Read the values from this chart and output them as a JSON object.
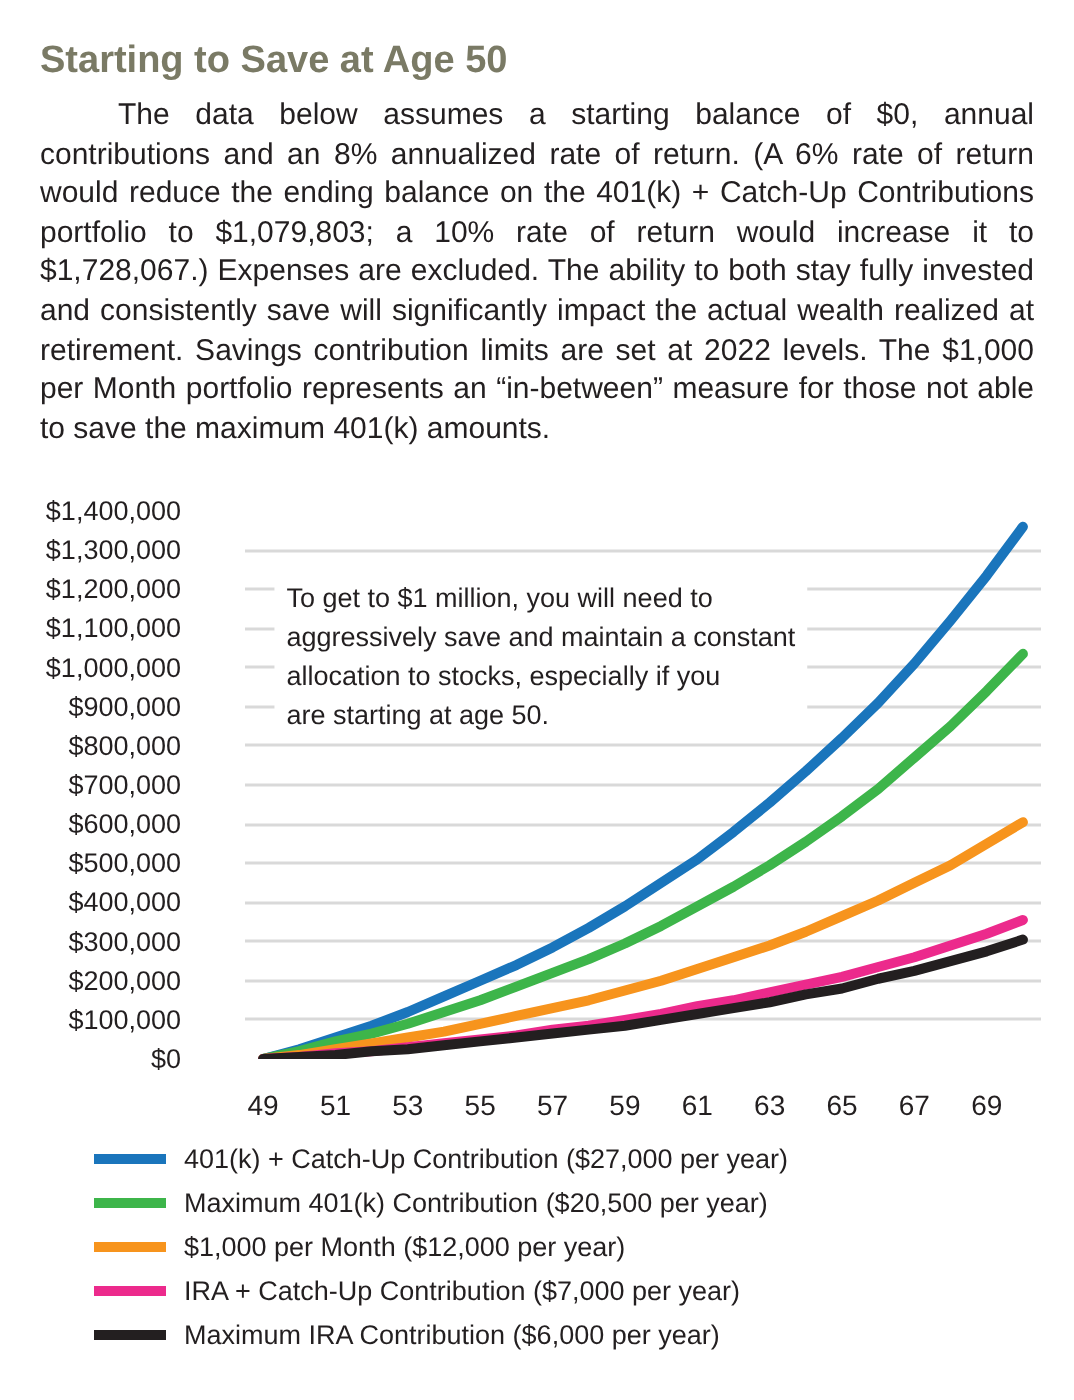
{
  "chart_data": {
    "type": "line",
    "title": "Starting to Save at Age 50",
    "subtitle": "The data below assumes a starting balance of $0, annual contributions and an 8% annualized rate of return. (A 6% rate of return would reduce the ending balance on the 401(k) + Catch-Up Contributions portfolio to $1,079,803; a 10% rate of return would increase it to $1,728,067.) Expenses are excluded. The ability to both stay fully invested and consistently save will significantly impact the actual wealth realized at retirement. Savings contribution limits are set at 2022 levels. The $1,000 per Month portfolio represents an “in-between” measure for those not able to save the maximum 401(k) amounts.",
    "annotations": [
      "To get to $1 million, you will need to aggressively save and maintain a constant allocation to stocks, especially if you are starting at age 50."
    ],
    "x": [
      49,
      50,
      51,
      52,
      53,
      54,
      55,
      56,
      57,
      58,
      59,
      60,
      61,
      62,
      63,
      64,
      65,
      66,
      67,
      68,
      69,
      70
    ],
    "series": [
      {
        "name": "401(k) + Catch-Up Contribution ($27,000 per year)",
        "color": "#1a75bc",
        "values": [
          0,
          25000,
          55000,
          85000,
          120000,
          160000,
          200000,
          240000,
          285000,
          335000,
          390000,
          450000,
          510000,
          580000,
          655000,
          735000,
          820000,
          910000,
          1010000,
          1120000,
          1235000,
          1360000
        ]
      },
      {
        "name": "Maximum 401(k) Contribution ($20,500 per year)",
        "color": "#3db54a",
        "values": [
          0,
          20000,
          45000,
          65000,
          90000,
          120000,
          150000,
          185000,
          220000,
          255000,
          295000,
          340000,
          390000,
          440000,
          495000,
          555000,
          620000,
          690000,
          770000,
          850000,
          940000,
          1035000
        ]
      },
      {
        "name": "$1,000 per Month ($12,000 per year)",
        "color": "#f7941d",
        "values": [
          0,
          10000,
          25000,
          40000,
          55000,
          70000,
          90000,
          110000,
          130000,
          150000,
          175000,
          200000,
          230000,
          260000,
          290000,
          325000,
          365000,
          405000,
          450000,
          495000,
          550000,
          605000
        ]
      },
      {
        "name": "IRA + Catch-Up Contribution ($7,000 per year)",
        "color": "#ec2a8c",
        "values": [
          0,
          5000,
          15000,
          20000,
          30000,
          40000,
          50000,
          60000,
          75000,
          85000,
          100000,
          115000,
          135000,
          150000,
          170000,
          190000,
          210000,
          235000,
          260000,
          290000,
          320000,
          355000
        ]
      },
      {
        "name": "Maximum IRA Contribution ($6,000 per year)",
        "color": "#231f20",
        "values": [
          0,
          5000,
          10000,
          20000,
          25000,
          35000,
          45000,
          55000,
          65000,
          75000,
          85000,
          100000,
          115000,
          130000,
          145000,
          165000,
          180000,
          205000,
          225000,
          250000,
          275000,
          305000
        ]
      }
    ],
    "xlim": [
      48.5,
      70.5
    ],
    "xticks": [
      49,
      51,
      53,
      55,
      57,
      59,
      61,
      63,
      65,
      67,
      69
    ],
    "ylim": [
      0,
      1400000
    ],
    "yticks": [
      {
        "value": 0,
        "label": "$0"
      },
      {
        "value": 100000,
        "label": "$100,000"
      },
      {
        "value": 200000,
        "label": "$200,000"
      },
      {
        "value": 300000,
        "label": "$300,000"
      },
      {
        "value": 400000,
        "label": "$400,000"
      },
      {
        "value": 500000,
        "label": "$500,000"
      },
      {
        "value": 600000,
        "label": "$600,000"
      },
      {
        "value": 700000,
        "label": "$700,000"
      },
      {
        "value": 800000,
        "label": "$800,000"
      },
      {
        "value": 900000,
        "label": "$900,000"
      },
      {
        "value": 1000000,
        "label": "$1,000,000"
      },
      {
        "value": 1100000,
        "label": "$1,100,000"
      },
      {
        "value": 1200000,
        "label": "$1,200,000"
      },
      {
        "value": 1300000,
        "label": "$1,300,000"
      },
      {
        "value": 1400000,
        "label": "$1,400,000"
      }
    ],
    "grid": "y",
    "legend": "bottom"
  }
}
